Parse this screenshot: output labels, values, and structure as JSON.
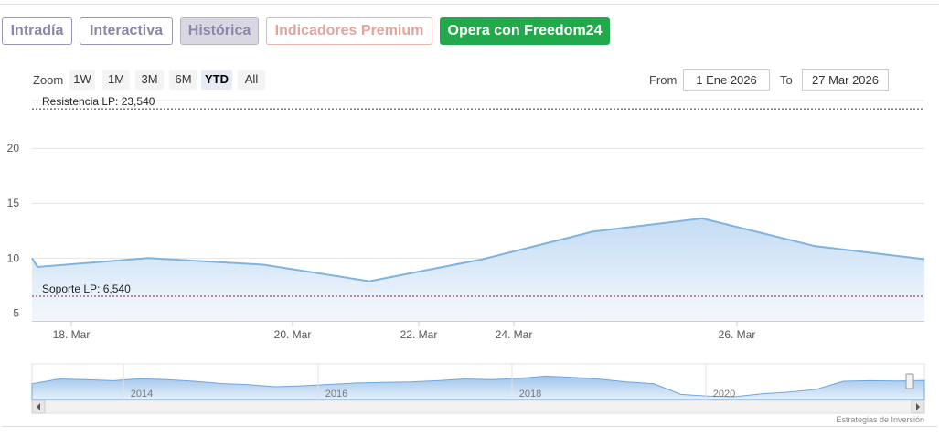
{
  "tabs": [
    {
      "label": "Intradía"
    },
    {
      "label": "Interactiva"
    },
    {
      "label": "Histórica"
    },
    {
      "label": "Indicadores Premium"
    },
    {
      "label": "Opera con Freedom24"
    }
  ],
  "range_selector": {
    "zoom_label": "Zoom",
    "buttons": [
      "1W",
      "1M",
      "3M",
      "6M",
      "YTD",
      "All"
    ],
    "active": "YTD",
    "from_label": "From",
    "from_value": "1 Ene 2026",
    "to_label": "To",
    "to_value": "27 Mar 2026"
  },
  "credits": "Estrategias de Inversión",
  "colors": {
    "line": "#7fb3e0",
    "fill_top": "#c4dcf4",
    "fill_bottom": "#f4f8fd",
    "resistance": "#2c3e1e",
    "support": "#8a1f2a",
    "freedom_green": "#22a94b"
  },
  "chart_data": {
    "type": "area",
    "x": [
      "17 Mar",
      "17 Mar",
      "19 Mar",
      "20 Mar",
      "21 Mar",
      "23 Mar",
      "24 Mar",
      "25 Mar",
      "26 Mar",
      "27 Mar"
    ],
    "values": [
      10.0,
      9.2,
      10.0,
      9.4,
      7.9,
      9.9,
      12.4,
      13.6,
      11.1,
      9.9
    ],
    "x_tick_labels": [
      "18. Mar",
      "20. Mar",
      "22. Mar",
      "24. Mar",
      "26. Mar"
    ],
    "y_ticks": [
      5,
      10,
      15,
      20
    ],
    "ylim": [
      4.3,
      24.3
    ],
    "grid": true,
    "plot_lines": [
      {
        "label": "Resistencia LP: 23,540",
        "value": 23.54
      },
      {
        "label": "Soporte LP: 6,540",
        "value": 6.54
      }
    ],
    "navigator": {
      "year_labels": [
        "2014",
        "2016",
        "2018",
        "2020"
      ]
    }
  }
}
